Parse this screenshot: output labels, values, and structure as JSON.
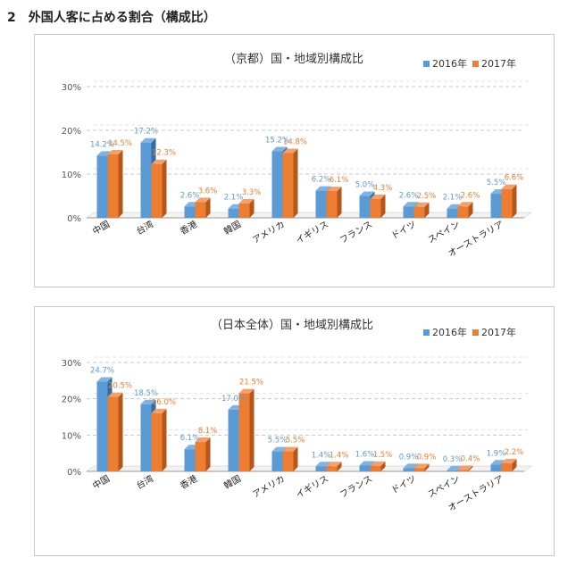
{
  "page": {
    "heading": "2　外国人客に占める割合（構成比）"
  },
  "colors": {
    "s2016": "#5b9bd5",
    "s2016_dark": "#2e6da8",
    "s2016_top": "#7fb3e2",
    "s2017": "#ed7d31",
    "s2017_dark": "#b5561b",
    "s2017_top": "#f4a06a",
    "grid": "#c8c8c8",
    "axis": "#999999"
  },
  "chart_data": [
    {
      "type": "bar",
      "title": "（京都）国・地域別構成比",
      "categories": [
        "中国",
        "台湾",
        "香港",
        "韓国",
        "アメリカ",
        "イギリス",
        "フランス",
        "ドイツ",
        "スペイン",
        "オーストラリア"
      ],
      "series": [
        {
          "name": "2016年",
          "values": [
            14.2,
            17.2,
            2.6,
            2.1,
            15.2,
            6.2,
            5.0,
            2.6,
            2.1,
            5.5
          ],
          "labels": [
            "14.2%",
            "17.2%",
            "2.6%",
            "2.1%",
            "15.2%",
            "6.2%",
            "5.0%",
            "2.6%",
            "2.1%",
            "5.5%"
          ]
        },
        {
          "name": "2017年",
          "values": [
            14.5,
            12.3,
            3.6,
            3.3,
            14.8,
            6.1,
            4.3,
            2.5,
            2.6,
            6.6
          ],
          "labels": [
            "14.5%",
            "12.3%",
            "3.6%",
            "3.3%",
            "14.8%",
            "6.1%",
            "4.3%",
            "2.5%",
            "2.6%",
            "6.6%"
          ]
        }
      ],
      "yticks": [
        "0%",
        "10%",
        "20%",
        "30%"
      ],
      "ylim": [
        0,
        30
      ],
      "grid": true,
      "legend": "top-right"
    },
    {
      "type": "bar",
      "title": "（日本全体）国・地域別構成比",
      "categories": [
        "中国",
        "台湾",
        "香港",
        "韓国",
        "アメリカ",
        "イギリス",
        "フランス",
        "ドイツ",
        "スペイン",
        "オーストラリア"
      ],
      "series": [
        {
          "name": "2016年",
          "values": [
            24.7,
            18.5,
            6.1,
            17.0,
            5.5,
            1.4,
            1.6,
            0.9,
            0.3,
            1.9
          ],
          "labels": [
            "24.7%",
            "18.5%",
            "6.1%",
            "17.0%",
            "5.5%",
            "1.4%",
            "1.6%",
            "0.9%",
            "0.3%",
            "1.9%"
          ]
        },
        {
          "name": "2017年",
          "values": [
            20.5,
            16.0,
            8.1,
            21.5,
            5.5,
            1.4,
            1.5,
            0.9,
            0.4,
            2.2
          ],
          "labels": [
            "20.5%",
            "16.0%",
            "8.1%",
            "21.5%",
            "5.5%",
            "1.4%",
            "1.5%",
            "0.9%",
            "0.4%",
            "2.2%"
          ]
        }
      ],
      "yticks": [
        "0%",
        "10%",
        "20%",
        "30%"
      ],
      "ylim": [
        0,
        30
      ],
      "grid": true,
      "legend": "top-right"
    }
  ]
}
